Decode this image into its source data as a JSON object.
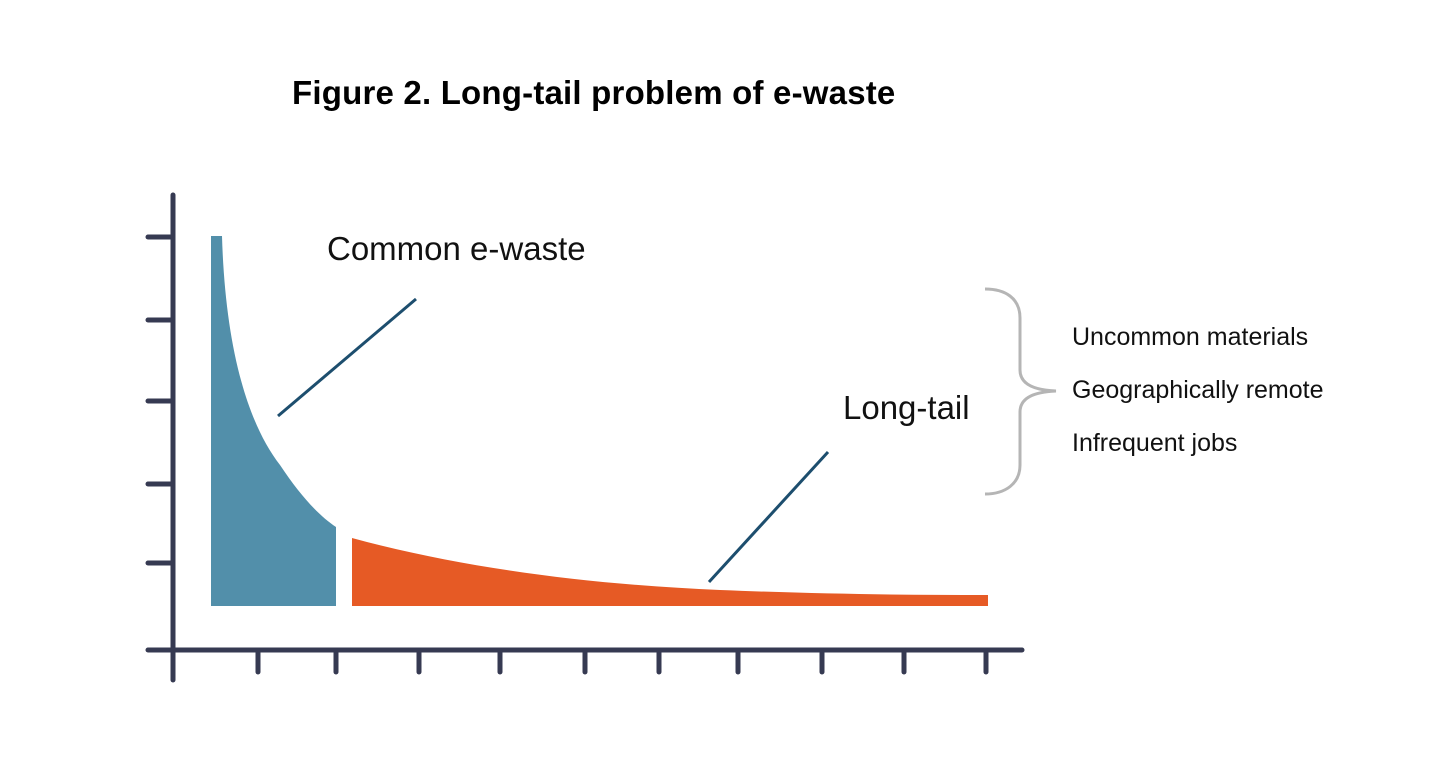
{
  "title": "Figure 2. Long-tail problem of e-waste",
  "labels": {
    "common": "Common e-waste",
    "longtail": "Long-tail"
  },
  "reasons": [
    "Uncommon materials",
    "Geographically remote",
    "Infrequent jobs"
  ],
  "colors": {
    "axis": "#363a52",
    "head": "#528faa",
    "tail": "#e65a25",
    "leader": "#1d4e6e",
    "brace": "#b5b5b5"
  }
}
